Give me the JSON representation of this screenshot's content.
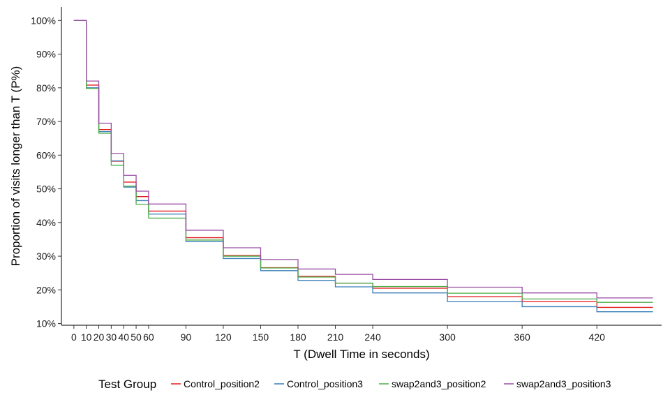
{
  "chart_data": {
    "type": "line",
    "step": true,
    "title": "",
    "xlabel": "T (Dwell Time in seconds)",
    "ylabel": "Proportion of visits longer than T (P%)",
    "xlim": [
      -10,
      472
    ],
    "ylim": [
      0.095,
      1.04
    ],
    "x_ticks": [
      0,
      10,
      20,
      30,
      40,
      50,
      60,
      90,
      120,
      150,
      180,
      210,
      240,
      300,
      360,
      420
    ],
    "x_tick_labels": [
      "0",
      "10",
      "20",
      "30",
      "40",
      "50",
      "60",
      "90",
      "120",
      "150",
      "180",
      "210",
      "240",
      "300",
      "360",
      "420"
    ],
    "y_ticks": [
      0.1,
      0.2,
      0.3,
      0.4,
      0.5,
      0.6,
      0.7,
      0.8,
      0.9,
      1.0
    ],
    "y_tick_labels": [
      "10%",
      "20%",
      "30%",
      "40%",
      "50%",
      "60%",
      "70%",
      "80%",
      "90%",
      "100%"
    ],
    "grid": false,
    "legend": {
      "title": "Test Group",
      "position": "bottom"
    },
    "x": [
      0,
      10,
      20,
      30,
      40,
      50,
      60,
      90,
      120,
      150,
      180,
      210,
      240,
      300,
      360,
      420,
      465
    ],
    "series": [
      {
        "name": "Control_position2",
        "color": "#e41a1c",
        "values": [
          1.0,
          0.808,
          0.676,
          0.582,
          0.52,
          0.477,
          0.434,
          0.355,
          0.302,
          0.266,
          0.24,
          0.22,
          0.205,
          0.18,
          0.165,
          0.148,
          0.148
        ]
      },
      {
        "name": "Control_position3",
        "color": "#377eb8",
        "values": [
          1.0,
          0.8,
          0.67,
          0.583,
          0.505,
          0.465,
          0.425,
          0.343,
          0.293,
          0.257,
          0.228,
          0.209,
          0.191,
          0.165,
          0.15,
          0.135,
          0.135
        ]
      },
      {
        "name": "swap2and3_position2",
        "color": "#4daf4a",
        "values": [
          1.0,
          0.798,
          0.665,
          0.57,
          0.508,
          0.454,
          0.413,
          0.348,
          0.3,
          0.265,
          0.238,
          0.22,
          0.21,
          0.19,
          0.173,
          0.163,
          0.163
        ]
      },
      {
        "name": "swap2and3_position3",
        "color": "#984ea3",
        "values": [
          1.0,
          0.82,
          0.695,
          0.605,
          0.54,
          0.493,
          0.455,
          0.377,
          0.325,
          0.29,
          0.262,
          0.246,
          0.231,
          0.208,
          0.191,
          0.176,
          0.176
        ]
      }
    ]
  }
}
